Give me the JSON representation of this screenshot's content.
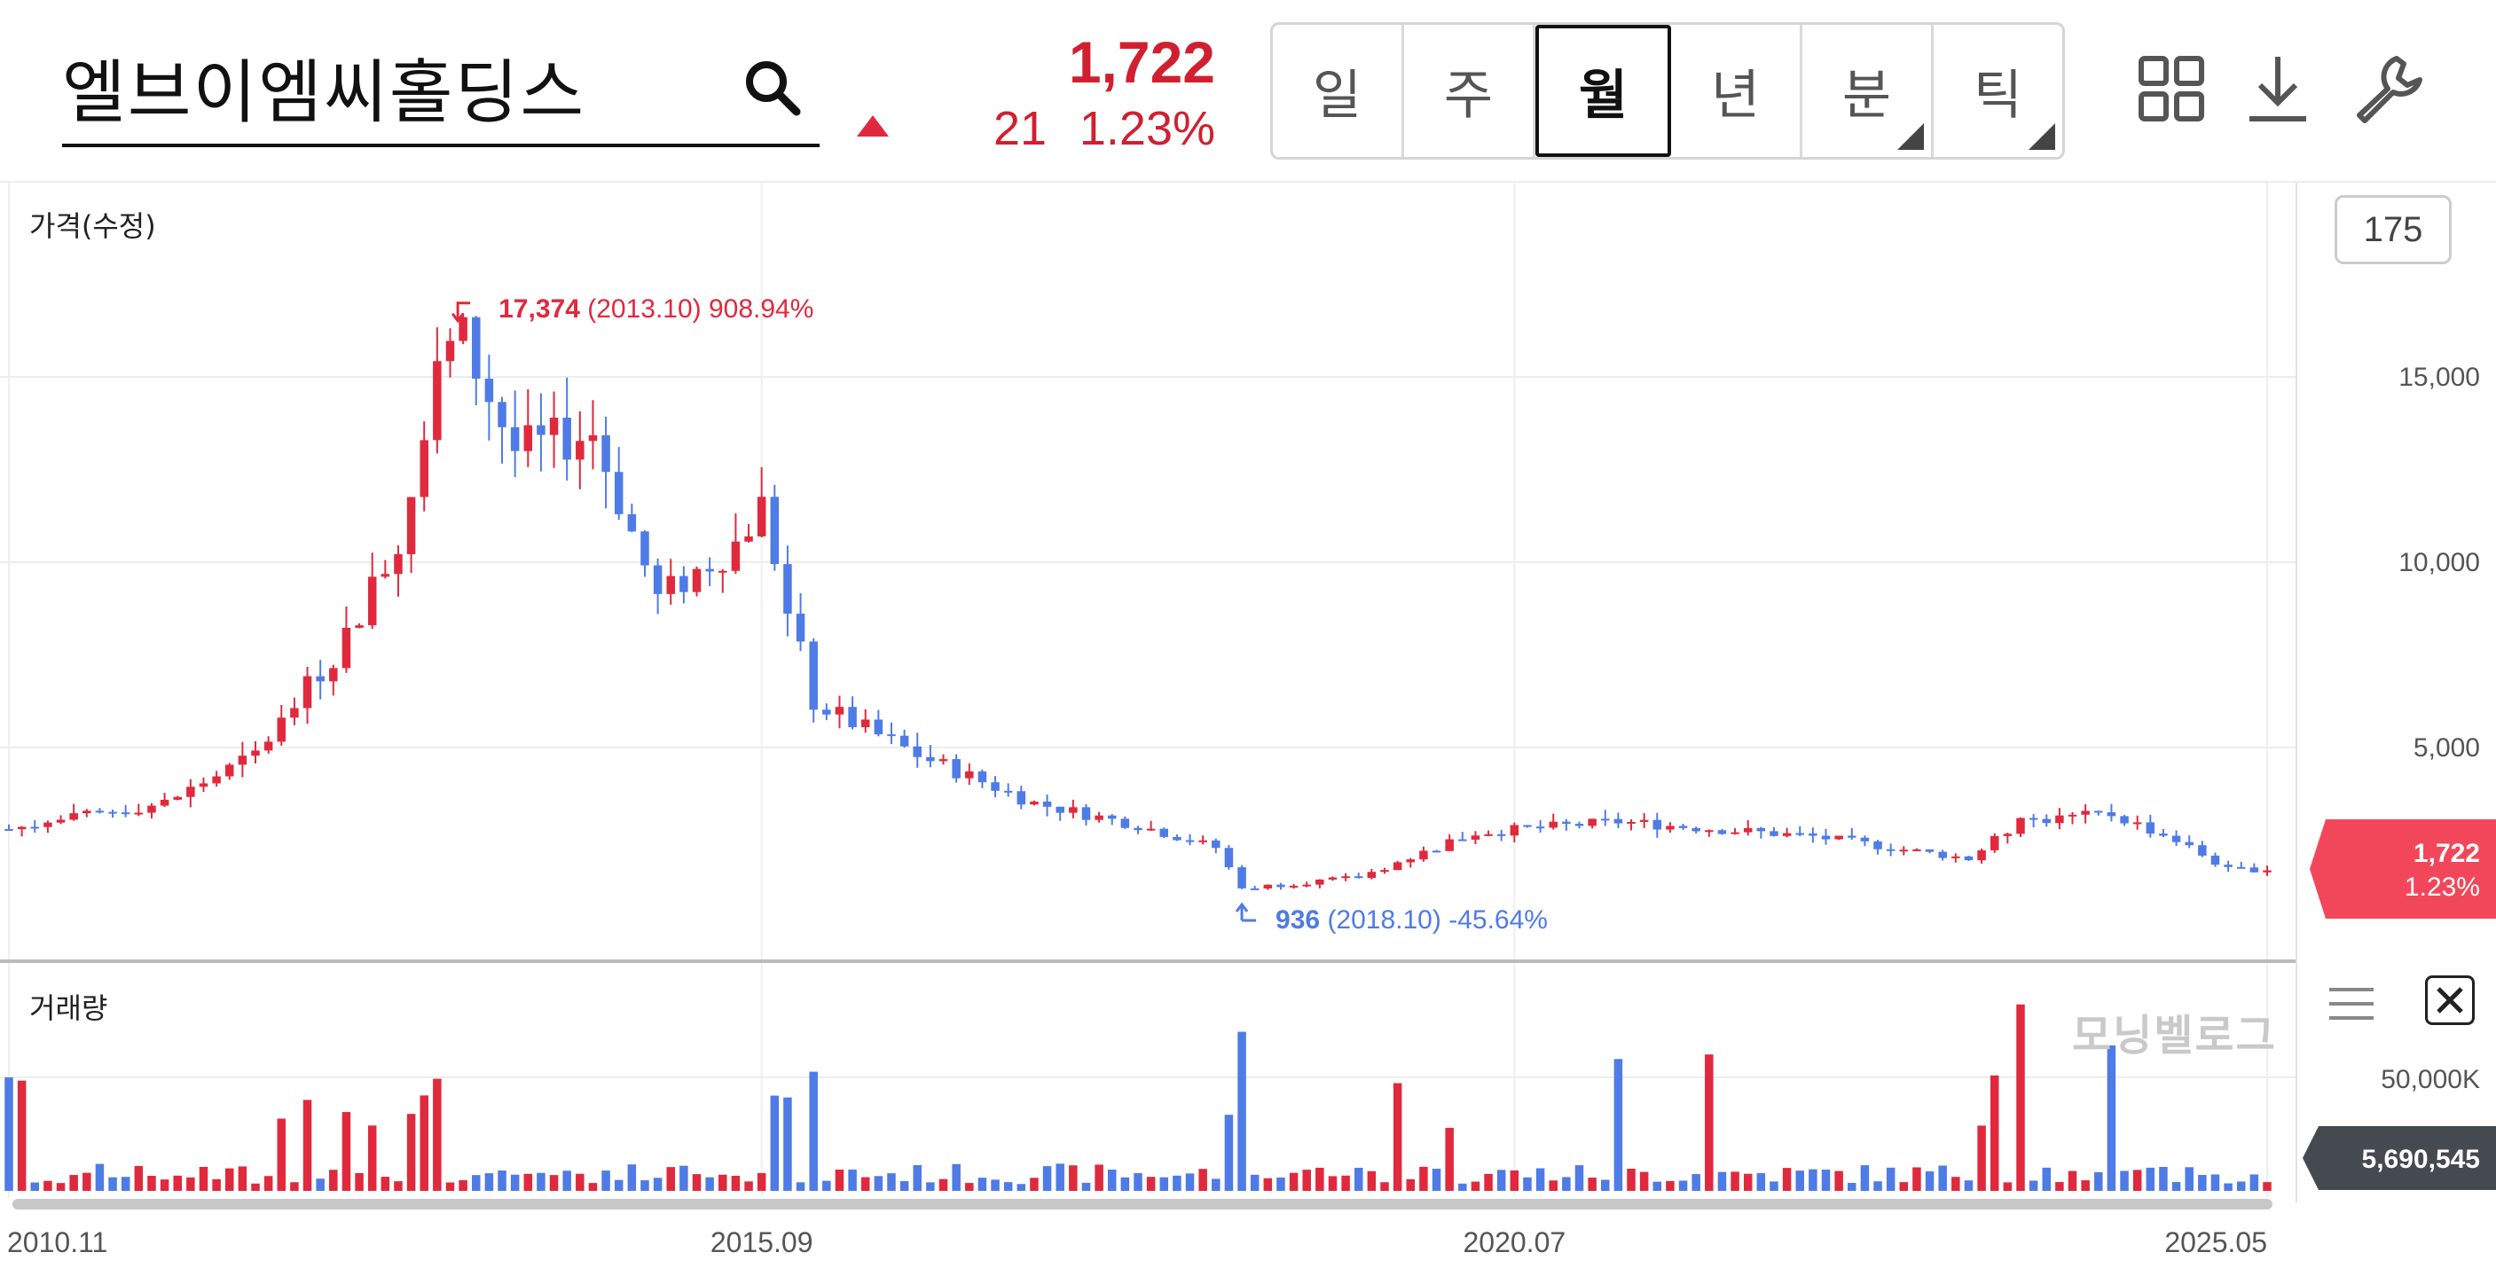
{
  "header": {
    "stock_name": "엘브이엠씨홀딩스",
    "price": "1,722",
    "change_abs": "21",
    "change_pct": "1.23%",
    "direction": "up",
    "up_color": "#e0293d",
    "down_color": "#4f7be6"
  },
  "period_tabs": [
    {
      "label": "일",
      "active": false,
      "has_menu": false
    },
    {
      "label": "주",
      "active": false,
      "has_menu": false
    },
    {
      "label": "월",
      "active": true,
      "has_menu": false
    },
    {
      "label": "년",
      "active": false,
      "has_menu": false
    },
    {
      "label": "분",
      "active": false,
      "has_menu": true
    },
    {
      "label": "틱",
      "active": false,
      "has_menu": true
    }
  ],
  "toolbar": {
    "icons": [
      "grid-layout-icon",
      "download-icon",
      "wrench-icon"
    ]
  },
  "chart": {
    "price_panel_label": "가격(수정)",
    "volume_panel_label": "거래량",
    "candle_count": "175",
    "watermark": "모닝벨로그",
    "price_axis_ticks": [
      "15,000",
      "10,000",
      "5,000"
    ],
    "volume_axis_ticks": [
      "50,000K"
    ],
    "x_ticks": [
      "2010.11",
      "2015.09",
      "2020.07",
      "2025.05"
    ],
    "high": {
      "price": "17,374",
      "date": "(2013.10)",
      "pct": "908.94%"
    },
    "low": {
      "price": "936",
      "date": "(2018.10)",
      "pct": "-45.64%"
    },
    "last_price_label": "1,722",
    "last_pct_label": "1.23%",
    "last_volume_label": "5,690,545"
  },
  "chart_data": {
    "type": "candlestick-monthly",
    "title": "",
    "period": "monthly",
    "x_start": "2010.11",
    "x_end": "2025.05",
    "price_range": [
      300,
      18600
    ],
    "volume_range": [
      0,
      94000
    ],
    "anchor_closes": [
      {
        "date": "2010.11",
        "close": 2800
      },
      {
        "date": "2011.11",
        "close": 3500
      },
      {
        "date": "2012.06",
        "close": 4800
      },
      {
        "date": "2012.12",
        "close": 7500
      },
      {
        "date": "2013.05",
        "close": 10500
      },
      {
        "date": "2013.08",
        "close": 15500
      },
      {
        "date": "2013.10",
        "close": 16000
      },
      {
        "date": "2014.02",
        "close": 13000
      },
      {
        "date": "2014.08",
        "close": 13500
      },
      {
        "date": "2015.01",
        "close": 9000
      },
      {
        "date": "2015.07",
        "close": 10500
      },
      {
        "date": "2015.09",
        "close": 11500
      },
      {
        "date": "2016.01",
        "close": 6200
      },
      {
        "date": "2016.09",
        "close": 4800
      },
      {
        "date": "2017.06",
        "close": 3500
      },
      {
        "date": "2018.02",
        "close": 2900
      },
      {
        "date": "2018.08",
        "close": 2300
      },
      {
        "date": "2018.10",
        "close": 1200
      },
      {
        "date": "2019.07",
        "close": 1500
      },
      {
        "date": "2020.04",
        "close": 2700
      },
      {
        "date": "2021.03",
        "close": 3000
      },
      {
        "date": "2022.06",
        "close": 2600
      },
      {
        "date": "2023.06",
        "close": 2000
      },
      {
        "date": "2023.10",
        "close": 3000
      },
      {
        "date": "2024.05",
        "close": 3200
      },
      {
        "date": "2024.10",
        "close": 2500
      },
      {
        "date": "2025.02",
        "close": 1700
      },
      {
        "date": "2025.05",
        "close": 1722
      }
    ],
    "high_point": {
      "date": "2013.10",
      "price": 17374,
      "pct": 908.94
    },
    "low_point": {
      "date": "2018.10",
      "price": 936,
      "pct": -45.64
    },
    "last": {
      "price": 1722,
      "pct": 1.23,
      "volume": 5690545
    }
  }
}
